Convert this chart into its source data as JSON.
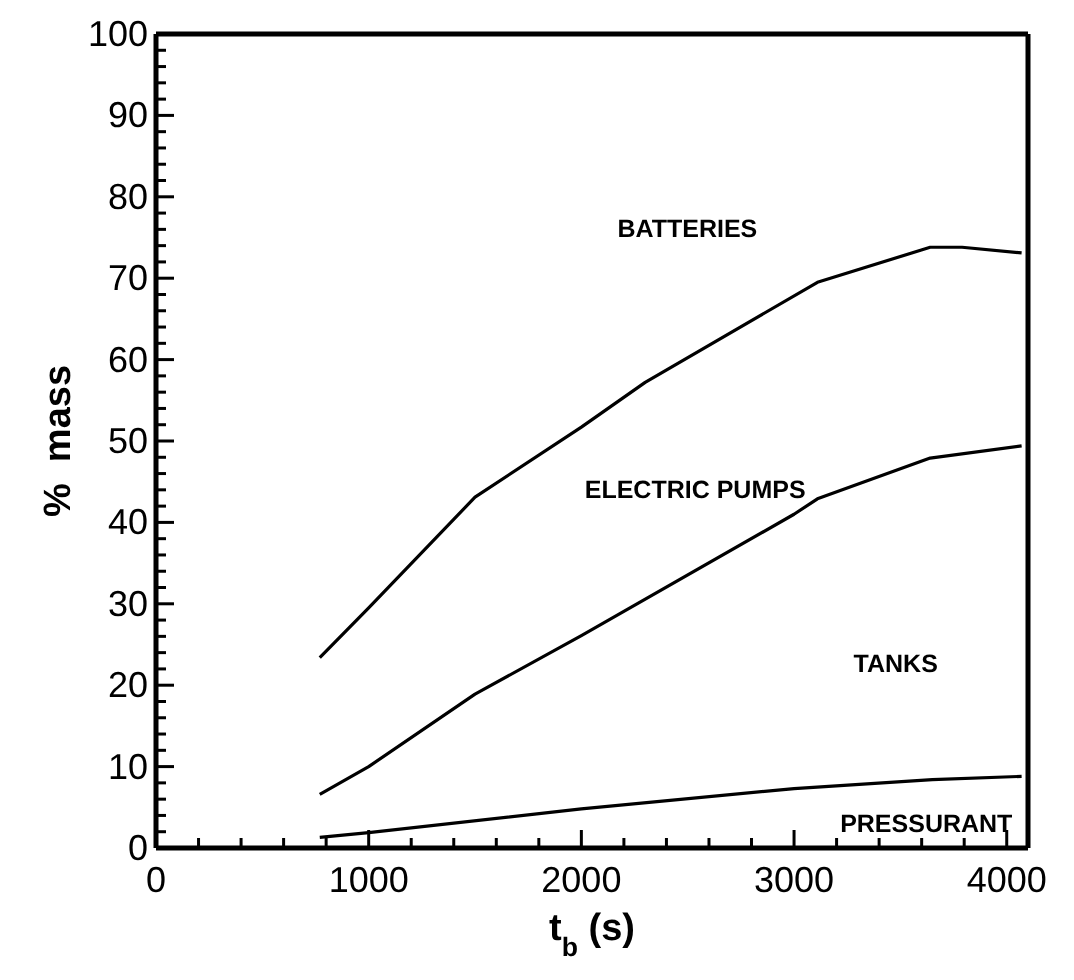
{
  "chart_data": {
    "type": "line",
    "xlabel": "t$_{b}$ (s)",
    "ylabel": "%  mass",
    "xlim": [
      0,
      4100
    ],
    "ylim": [
      0,
      100
    ],
    "xticks": [
      0,
      {
        "value": 200,
        "label": null
      },
      {
        "value": 400,
        "label": null
      },
      {
        "value": 600,
        "label": null
      },
      {
        "value": 800,
        "label": null
      },
      1000,
      {
        "value": 1200,
        "label": null
      },
      {
        "value": 1400,
        "label": null
      },
      {
        "value": 1600,
        "label": null
      },
      {
        "value": 1800,
        "label": null
      },
      2000,
      {
        "value": 2200,
        "label": null
      },
      {
        "value": 2400,
        "label": null
      },
      {
        "value": 2600,
        "label": null
      },
      {
        "value": 2800,
        "label": null
      },
      3000,
      {
        "value": 3200,
        "label": null
      },
      {
        "value": 3400,
        "label": null
      },
      {
        "value": 3600,
        "label": null
      },
      {
        "value": 3800,
        "label": null
      },
      4000
    ],
    "yticks": [
      0,
      {
        "value": 2,
        "label": null
      },
      {
        "value": 4,
        "label": null
      },
      {
        "value": 6,
        "label": null
      },
      {
        "value": 8,
        "label": null
      },
      10,
      {
        "value": 12,
        "label": null
      },
      {
        "value": 14,
        "label": null
      },
      {
        "value": 16,
        "label": null
      },
      {
        "value": 18,
        "label": null
      },
      20,
      {
        "value": 22,
        "label": null
      },
      {
        "value": 24,
        "label": null
      },
      {
        "value": 26,
        "label": null
      },
      {
        "value": 28,
        "label": null
      },
      30,
      {
        "value": 32,
        "label": null
      },
      {
        "value": 34,
        "label": null
      },
      {
        "value": 36,
        "label": null
      },
      {
        "value": 38,
        "label": null
      },
      40,
      {
        "value": 42,
        "label": null
      },
      {
        "value": 44,
        "label": null
      },
      {
        "value": 46,
        "label": null
      },
      {
        "value": 48,
        "label": null
      },
      50,
      {
        "value": 52,
        "label": null
      },
      {
        "value": 54,
        "label": null
      },
      {
        "value": 56,
        "label": null
      },
      {
        "value": 58,
        "label": null
      },
      60,
      {
        "value": 62,
        "label": null
      },
      {
        "value": 64,
        "label": null
      },
      {
        "value": 66,
        "label": null
      },
      {
        "value": 68,
        "label": null
      },
      70,
      {
        "value": 72,
        "label": null
      },
      {
        "value": 74,
        "label": null
      },
      {
        "value": 76,
        "label": null
      },
      {
        "value": 78,
        "label": null
      },
      80,
      {
        "value": 82,
        "label": null
      },
      {
        "value": 84,
        "label": null
      },
      {
        "value": 86,
        "label": null
      },
      {
        "value": 88,
        "label": null
      },
      90,
      {
        "value": 92,
        "label": null
      },
      {
        "value": 94,
        "label": null
      },
      {
        "value": 96,
        "label": null
      },
      {
        "value": 98,
        "label": null
      },
      100
    ],
    "marker": "none",
    "line_style": "solid",
    "series": [
      {
        "color": "#000000",
        "x": [
          770,
          1000,
          1500,
          2000,
          2300,
          3110,
          3640,
          3790,
          4070
        ],
        "values": [
          23.4,
          29.5,
          43.1,
          51.7,
          57.2,
          69.5,
          73.8,
          73.8,
          73.1
        ]
      },
      {
        "color": "#000000",
        "x": [
          770,
          1000,
          1500,
          2000,
          3000,
          3110,
          3640,
          4070
        ],
        "values": [
          6.6,
          10,
          18.9,
          26.1,
          41,
          42.9,
          47.9,
          49.4
        ]
      },
      {
        "color": "#000000",
        "x": [
          770,
          1000,
          2000,
          3000,
          3650,
          4070
        ],
        "values": [
          1.3,
          1.9,
          4.8,
          7.3,
          8.4,
          8.8
        ]
      }
    ],
    "annotations": [
      "BATTERIES",
      "ELECTRIC PUMPS",
      "TANKS",
      "PRESSURANT"
    ]
  }
}
